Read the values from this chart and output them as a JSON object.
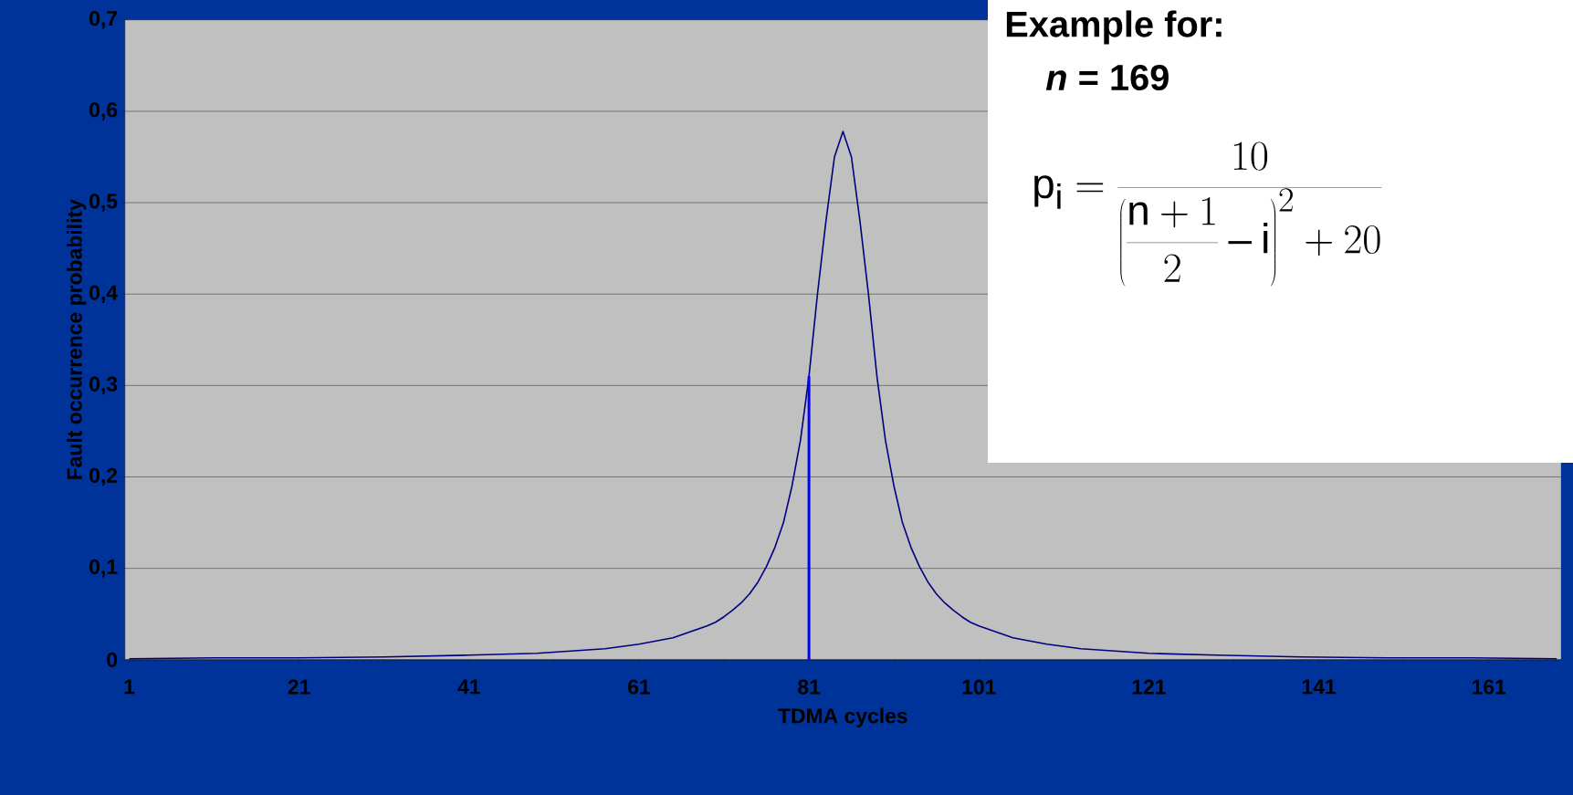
{
  "chart_data": {
    "type": "line",
    "xlabel": "TDMA cycles",
    "ylabel": "Fault occurrence probability",
    "x": [
      1,
      11,
      21,
      31,
      41,
      49,
      57,
      61,
      65,
      69,
      70,
      71,
      72,
      73,
      74,
      75,
      76,
      77,
      78,
      79,
      80,
      81,
      82,
      83,
      84,
      85,
      86,
      87,
      88,
      89,
      90,
      91,
      92,
      93,
      94,
      95,
      96,
      97,
      98,
      99,
      100,
      101,
      105,
      109,
      113,
      121,
      129,
      139,
      149,
      159,
      169
    ],
    "series": [
      {
        "color": "#000080",
        "values": [
          0.001,
          0.002,
          0.002,
          0.003,
          0.005,
          0.007,
          0.012,
          0.017,
          0.024,
          0.037,
          0.041,
          0.047,
          0.054,
          0.062,
          0.072,
          0.085,
          0.102,
          0.123,
          0.15,
          0.19,
          0.24,
          0.31,
          0.4,
          0.48,
          0.55,
          0.578,
          0.55,
          0.48,
          0.4,
          0.31,
          0.24,
          0.19,
          0.15,
          0.123,
          0.102,
          0.085,
          0.072,
          0.062,
          0.054,
          0.047,
          0.041,
          0.037,
          0.024,
          0.017,
          0.012,
          0.007,
          0.005,
          0.003,
          0.002,
          0.002,
          0.001
        ]
      }
    ],
    "xlim": [
      0.5,
      169.5
    ],
    "xticks": [
      1,
      {
        "value": 11,
        "label": null
      },
      21,
      {
        "value": 31,
        "label": null
      },
      41,
      {
        "value": 51,
        "label": null
      },
      61,
      {
        "value": 71,
        "label": null
      },
      81,
      {
        "value": 91,
        "label": null
      },
      101,
      {
        "value": 111,
        "label": null
      },
      121,
      {
        "value": 131,
        "label": null
      },
      141,
      {
        "value": 151,
        "label": null
      },
      161
    ],
    "ylim": [
      0,
      0.7
    ],
    "yticks": [
      0,
      {
        "value": 0.1,
        "label": "0,1"
      },
      {
        "value": 0.2,
        "label": "0,2"
      },
      {
        "value": 0.3,
        "label": "0,3"
      },
      {
        "value": 0.4,
        "label": "0,4"
      },
      {
        "value": 0.5,
        "label": "0,5"
      },
      {
        "value": 0.6,
        "label": "0,6"
      },
      {
        "value": 0.7,
        "label": "0,7"
      }
    ],
    "grid": "y",
    "marker": "none",
    "line_style": "solid",
    "ref_lines": [
      {
        "axis": "x",
        "value": 81,
        "color": "#0000ff"
      }
    ],
    "annotations": [
      "Example for:",
      "*n* = 169",
      "p_i = \\frac{10}{\\left(\\displaystyle\\frac{n+1}{2}-i\\right)^{2}+20}"
    ]
  }
}
